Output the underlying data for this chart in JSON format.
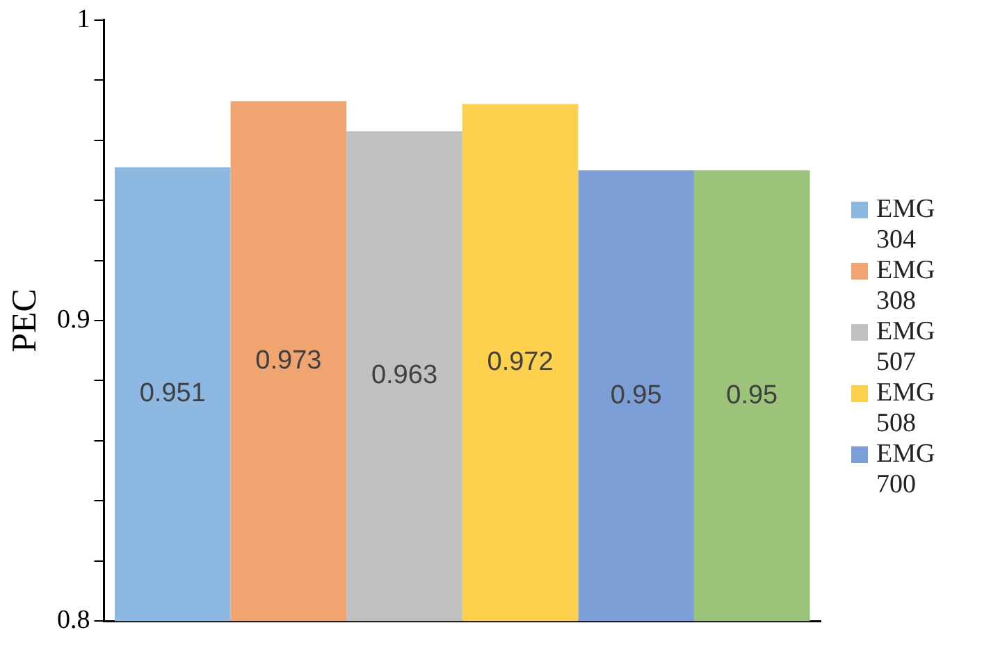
{
  "chart_data": {
    "type": "bar",
    "ylabel": "PEC",
    "categories": [
      null
    ],
    "series": [
      {
        "name": "EMG 304",
        "color": "#8db8e2",
        "values": [
          0.951
        ]
      },
      {
        "name": "EMG 308",
        "color": "#f0a470",
        "values": [
          0.973
        ]
      },
      {
        "name": "EMG 507",
        "color": "#c0c0c0",
        "values": [
          0.963
        ]
      },
      {
        "name": "EMG 508",
        "color": "#fdd04e",
        "values": [
          0.972
        ]
      },
      {
        "name": "EMG 700",
        "color": "#7b9fd6",
        "values": [
          0.95
        ]
      },
      {
        "color": "#9bc47a",
        "values": [
          0.95
        ]
      }
    ],
    "ylim": [
      0.8,
      1
    ],
    "yticks": [
      0.8,
      {
        "value": 0.82,
        "label": null
      },
      {
        "value": 0.84,
        "label": null
      },
      {
        "value": 0.86,
        "label": null
      },
      {
        "value": 0.88,
        "label": null
      },
      0.9,
      {
        "value": 0.92,
        "label": null
      },
      {
        "value": 0.94,
        "label": null
      },
      {
        "value": 0.96,
        "label": null
      },
      {
        "value": 0.98,
        "label": null
      },
      1
    ],
    "data_labels": true,
    "grid": false,
    "legend": "right"
  }
}
